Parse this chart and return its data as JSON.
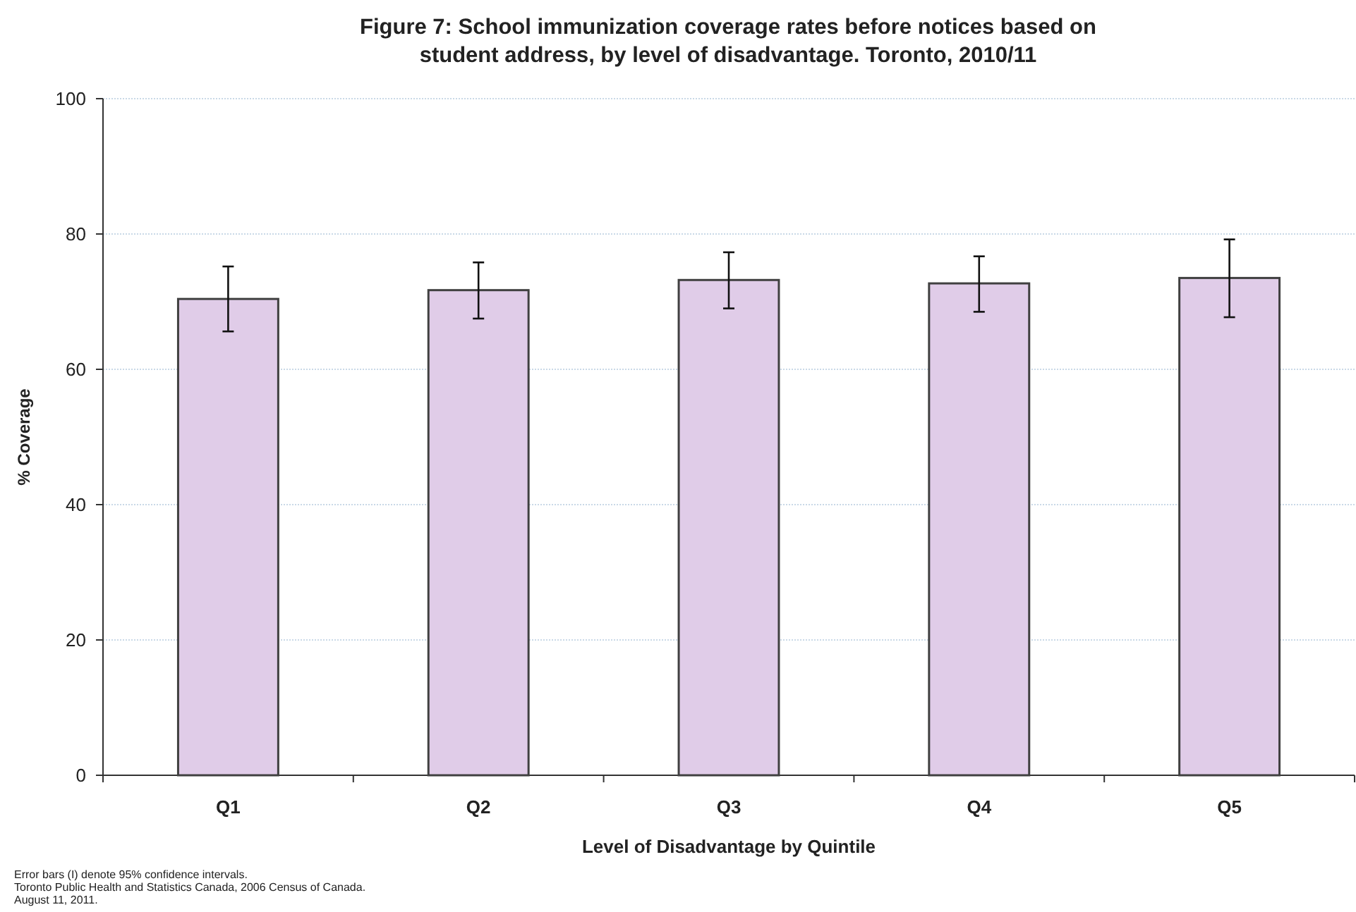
{
  "chart_data": {
    "type": "bar",
    "title": "Figure 7: School immunization coverage rates before notices based on student address, by level of disadvantage. Toronto, 2010/11",
    "xlabel": "Level of Disadvantage by Quintile",
    "ylabel": "% Coverage",
    "categories": [
      "Q1",
      "Q2",
      "Q3",
      "Q4",
      "Q5"
    ],
    "values": [
      70.4,
      71.7,
      73.2,
      72.7,
      73.5
    ],
    "errors": [
      [
        65.6,
        75.2
      ],
      [
        67.5,
        75.8
      ],
      [
        69.0,
        77.3
      ],
      [
        68.5,
        76.7
      ],
      [
        67.7,
        79.2
      ]
    ],
    "color": "#e0cce8",
    "ylim": [
      0,
      100
    ],
    "yticks": [
      0,
      20,
      40,
      60,
      80,
      100
    ],
    "grid": "y",
    "annotations": [
      "Error bars (I) denote 95% confidence intervals.",
      "Toronto Public Health and Statistics Canada, 2006 Census of Canada.",
      "August 11, 2011."
    ]
  }
}
